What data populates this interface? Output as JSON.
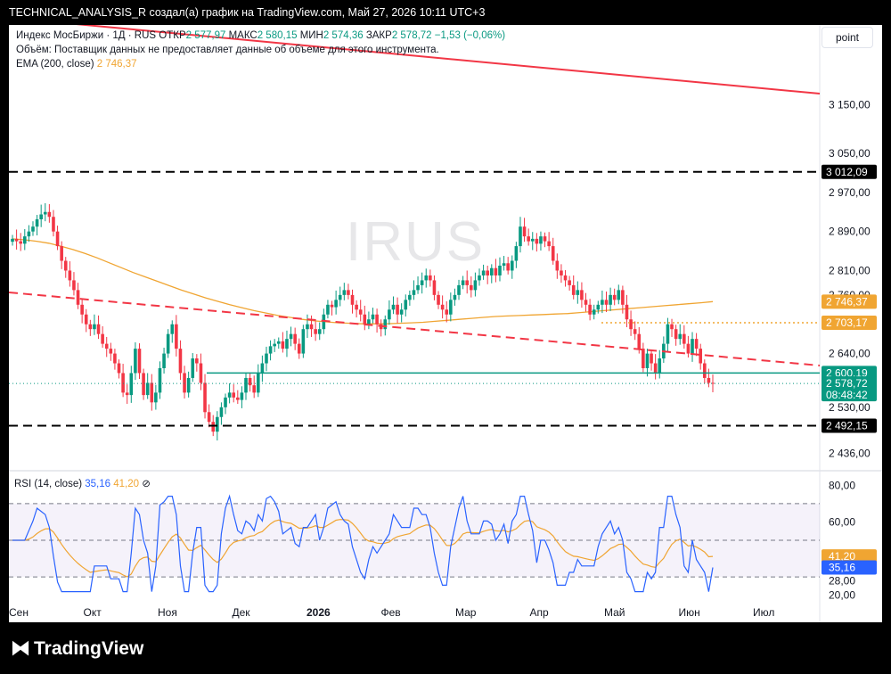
{
  "header": {
    "credit": "TECHNICAL_ANALYSIS_R создал(а) график на TradingView.com, Май 27, 2026 10:11 UTC+3"
  },
  "legend": {
    "symbol": "Индекс МосБиржи · 1Д · RUS",
    "open_label": "ОТКР",
    "open": "2 577,97",
    "high_label": "МАКС",
    "high": "2 580,15",
    "low_label": "МИН",
    "low": "2 574,36",
    "close_label": "ЗАКР",
    "close": "2 578,72",
    "change": "−1,53 (−0,06%)",
    "volume_note": "Объём: Поставщик данных не предоставляет данные об объеме для этого инструмента.",
    "ema_label": "EMA (200, close)",
    "ema_value": "2 746,37"
  },
  "watermark": "IRUS",
  "scale_button": "point",
  "rsi_legend": {
    "label": "RSI (14, close)",
    "value": "35,16",
    "ma": "41,20"
  },
  "footer": {
    "logo": "TradingView"
  },
  "colors": {
    "up": "#089981",
    "down": "#f23645",
    "ema": "#f0a532",
    "rsi": "#2962ff",
    "trend": "#f23645",
    "level": "#089981"
  },
  "chart_data": {
    "type": "candlestick",
    "x_labels": [
      "Сен",
      "Окт",
      "Ноя",
      "Дек",
      "2026",
      "Фев",
      "Мар",
      "Апр",
      "Май",
      "Июн",
      "Июл"
    ],
    "y_ticks": [
      3150,
      3050,
      2970,
      2890,
      2810,
      2760,
      2640,
      2530,
      2436
    ],
    "y_tick_labels": [
      "3 150,00",
      "3 050,00",
      "2 970,00",
      "2 890,00",
      "2 810,00",
      "2 760,00",
      "2 640,00",
      "2 530,00",
      "2 436,00"
    ],
    "price_tags": [
      {
        "label": "3 012,09",
        "value": 3012.09,
        "style": "black"
      },
      {
        "label": "2 746,37",
        "value": 2746.37,
        "style": "orange"
      },
      {
        "label": "2 703,17",
        "value": 2703.17,
        "style": "orange"
      },
      {
        "label": "2 600,19",
        "value": 2600.19,
        "style": "green"
      },
      {
        "label": "2 578,72",
        "value": 2578.72,
        "style": "green",
        "sub": "08:48:42"
      },
      {
        "label": "2 492,15",
        "value": 2492.15,
        "style": "black"
      }
    ],
    "levels": [
      {
        "value": 3012.09,
        "kind": "dashed-black"
      },
      {
        "value": 2492.15,
        "kind": "dashed-black"
      },
      {
        "value": 2703.17,
        "kind": "dotted-orange",
        "from": "Апр"
      },
      {
        "value": 2600.19,
        "kind": "solid-green",
        "from": "Ноя"
      }
    ],
    "close": [
      2875,
      2870,
      2865,
      2880,
      2890,
      2900,
      2915,
      2925,
      2930,
      2920,
      2890,
      2860,
      2830,
      2810,
      2790,
      2770,
      2740,
      2720,
      2700,
      2690,
      2700,
      2680,
      2660,
      2650,
      2640,
      2620,
      2600,
      2560,
      2555,
      2600,
      2650,
      2600,
      2555,
      2580,
      2540,
      2560,
      2610,
      2640,
      2680,
      2700,
      2650,
      2600,
      2560,
      2590,
      2630,
      2620,
      2580,
      2520,
      2500,
      2480,
      2510,
      2530,
      2550,
      2560,
      2550,
      2545,
      2560,
      2590,
      2575,
      2560,
      2600,
      2620,
      2640,
      2655,
      2660,
      2665,
      2650,
      2670,
      2680,
      2660,
      2640,
      2690,
      2700,
      2690,
      2680,
      2690,
      2720,
      2740,
      2735,
      2750,
      2760,
      2770,
      2760,
      2740,
      2730,
      2720,
      2700,
      2710,
      2720,
      2700,
      2690,
      2710,
      2730,
      2740,
      2720,
      2730,
      2750,
      2760,
      2770,
      2780,
      2790,
      2800,
      2790,
      2760,
      2740,
      2730,
      2720,
      2750,
      2760,
      2780,
      2790,
      2780,
      2770,
      2790,
      2800,
      2810,
      2800,
      2815,
      2800,
      2820,
      2825,
      2810,
      2830,
      2860,
      2900,
      2880,
      2870,
      2875,
      2865,
      2880,
      2870,
      2860,
      2830,
      2810,
      2800,
      2790,
      2780,
      2760,
      2770,
      2750,
      2740,
      2720,
      2730,
      2740,
      2750,
      2740,
      2760,
      2750,
      2770,
      2740,
      2710,
      2690,
      2680,
      2650,
      2610,
      2640,
      2620,
      2600,
      2630,
      2660,
      2700,
      2690,
      2670,
      2680,
      2660,
      2640,
      2670,
      2650,
      2620,
      2590,
      2580,
      2578.72
    ],
    "ema200": [
      2875,
      2873,
      2870,
      2866,
      2860,
      2853,
      2845,
      2836,
      2826,
      2816,
      2806,
      2797,
      2788,
      2779,
      2770,
      2762,
      2754,
      2747,
      2740,
      2734,
      2728,
      2723,
      2718,
      2714,
      2710,
      2707,
      2705,
      2703,
      2702,
      2701,
      2701,
      2701,
      2702,
      2703,
      2704,
      2706,
      2708,
      2710,
      2712,
      2714,
      2716,
      2717,
      2718,
      2719,
      2720,
      2721,
      2722,
      2724,
      2726,
      2728,
      2730,
      2732,
      2734,
      2736,
      2738,
      2740,
      2742,
      2744,
      2746.37
    ],
    "rsi": {
      "value": 35.16,
      "ma": 41.2,
      "bands": [
        70,
        50,
        30
      ],
      "y_tick_labels": [
        "80,00",
        "60,00",
        "41,20",
        "35,16",
        "28,00",
        "20,00"
      ]
    }
  }
}
